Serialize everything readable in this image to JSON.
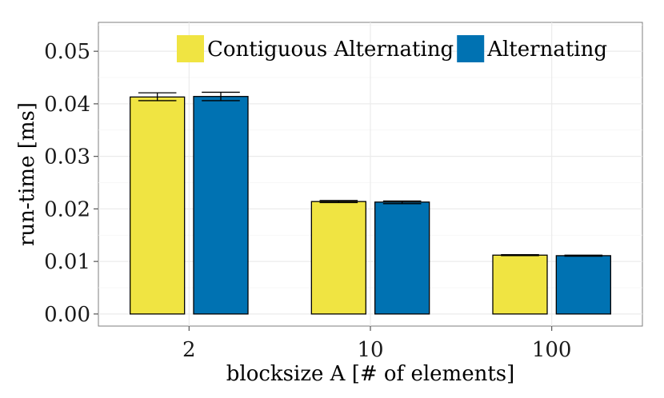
{
  "chart_data": {
    "type": "bar",
    "xlabel": "blocksize A [# of elements]",
    "ylabel": "run-time [ms]",
    "categories": [
      "2",
      "10",
      "100"
    ],
    "ylim": [
      -0.0023,
      0.0555
    ],
    "yticks": [
      "0.00",
      "0.01",
      "0.02",
      "0.03",
      "0.04",
      "0.05"
    ],
    "grid": true,
    "legend_position": "top-right",
    "series": [
      {
        "name": "Contiguous Alternating",
        "color": "#f0e442",
        "values": [
          0.0413,
          0.0214,
          0.0112
        ],
        "error_low": [
          0.0406,
          0.0212,
          0.0111
        ],
        "error_high": [
          0.0421,
          0.0216,
          0.0113
        ]
      },
      {
        "name": "Alternating",
        "color": "#0072b2",
        "values": [
          0.0414,
          0.0213,
          0.0111
        ],
        "error_low": [
          0.0406,
          0.021,
          0.011
        ],
        "error_high": [
          0.0422,
          0.0215,
          0.0112
        ]
      }
    ]
  }
}
